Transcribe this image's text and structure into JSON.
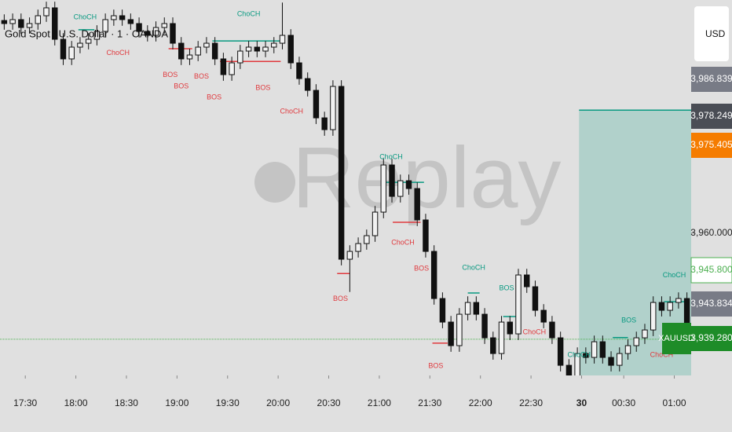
{
  "chart_data": {
    "type": "candlestick",
    "title": "Gold Spot / U.S. Dollar · 1 · OANDA",
    "currency": "USD",
    "symbol": "XAUUSD",
    "watermark": "Replay",
    "up_color": "#f2f2f2",
    "down_color": "#111111",
    "open": [
      4001.5,
      4000.9,
      4001.67,
      4000.13,
      4000.9,
      4002.43,
      4003.97,
      3997.83,
      3994.0,
      3996.3,
      3997.06,
      3997.83,
      3999.37,
      4001.67,
      4002.43,
      4001.67,
      4000.9,
      3999.37,
      3998.6,
      4000.13,
      4000.9,
      3997.06,
      3994.0,
      3994.76,
      3996.3,
      3997.06,
      3994.0,
      3990.93,
      3993.23,
      3995.53,
      3996.3,
      3995.53,
      3996.3,
      3997.06,
      3998.6,
      3993.23,
      3990.16,
      3987.86,
      3982.49,
      3980.19,
      3988.63,
      3954.89,
      3956.42,
      3957.95,
      3959.49,
      3964.09,
      3973.29,
      3967.16,
      3970.22,
      3968.69,
      3962.56,
      3956.42,
      3947.22,
      3942.62,
      3938.02,
      3944.15,
      3946.45,
      3944.15,
      3939.55,
      3936.48,
      3942.62,
      3940.32,
      3951.82,
      3949.52,
      3944.92,
      3942.62,
      3939.55,
      3934.18,
      3931.11,
      3936.48,
      3935.72,
      3938.78,
      3935.72,
      3934.18,
      3936.48,
      3938.02,
      3939.55,
      3941.08,
      3946.45,
      3944.92,
      3946.45,
      3947.22
    ],
    "high": [
      4002.7,
      4002.87,
      4002.87,
      4002.1,
      4003.63,
      4005.17,
      4005.17,
      3999.03,
      3997.5,
      3998.26,
      3999.03,
      4000.57,
      4002.87,
      4003.63,
      4003.63,
      4002.87,
      4002.1,
      4000.57,
      4001.33,
      4002.1,
      4002.1,
      3998.26,
      3995.96,
      3997.5,
      3998.26,
      3998.26,
      3995.2,
      3994.43,
      3996.73,
      3997.5,
      3997.5,
      3997.5,
      3998.26,
      4005.0,
      3999.8,
      3994.43,
      3991.36,
      3989.06,
      3983.69,
      3989.83,
      3989.83,
      3957.62,
      3959.15,
      3960.69,
      3965.29,
      3974.49,
      3974.49,
      3971.42,
      3971.42,
      3969.89,
      3963.76,
      3957.62,
      3948.42,
      3943.82,
      3945.35,
      3947.65,
      3947.65,
      3945.35,
      3940.75,
      3943.82,
      3943.82,
      3953.02,
      3953.02,
      3950.72,
      3946.12,
      3943.82,
      3940.75,
      3935.38,
      3937.68,
      3937.68,
      3939.98,
      3939.98,
      3936.92,
      3937.68,
      3939.22,
      3940.75,
      3942.28,
      3947.65,
      3947.65,
      3947.65,
      3948.42,
      3948.42
    ],
    "low": [
      3999.7,
      3999.7,
      3998.93,
      3998.93,
      3999.7,
      4001.23,
      3996.63,
      3992.8,
      3992.8,
      3995.1,
      3995.86,
      3996.63,
      3998.17,
      4000.47,
      4000.47,
      3999.7,
      3998.17,
      3997.4,
      3997.4,
      3998.93,
      3995.86,
      3992.8,
      3992.8,
      3993.56,
      3995.1,
      3992.8,
      3989.73,
      3989.73,
      3992.03,
      3994.33,
      3994.33,
      3994.33,
      3995.1,
      3995.86,
      3992.03,
      3988.96,
      3986.66,
      3981.29,
      3978.99,
      3978.99,
      3953.69,
      3948.5,
      3955.22,
      3956.75,
      3958.29,
      3962.89,
      3965.96,
      3965.96,
      3967.49,
      3961.36,
      3955.22,
      3946.02,
      3941.42,
      3936.82,
      3936.82,
      3942.95,
      3942.95,
      3938.35,
      3935.28,
      3935.28,
      3939.12,
      3939.12,
      3948.32,
      3943.72,
      3941.42,
      3938.35,
      3932.98,
      3929.91,
      3929.91,
      3934.52,
      3934.52,
      3934.52,
      3932.98,
      3932.98,
      3935.28,
      3936.82,
      3938.35,
      3939.88,
      3943.72,
      3943.72,
      3945.25,
      3938.08
    ],
    "close": [
      4000.9,
      4001.67,
      4000.13,
      4000.9,
      4002.43,
      4003.97,
      3997.83,
      3994.0,
      3996.3,
      3997.06,
      3997.83,
      3999.37,
      4001.67,
      4002.43,
      4001.67,
      4000.9,
      3999.37,
      3998.6,
      4000.13,
      4000.9,
      3997.06,
      3994.0,
      3994.76,
      3996.3,
      3997.06,
      3994.0,
      3990.93,
      3993.23,
      3995.53,
      3996.3,
      3995.53,
      3996.3,
      3997.06,
      3998.6,
      3993.23,
      3990.16,
      3987.86,
      3982.49,
      3980.19,
      3988.63,
      3954.89,
      3956.42,
      3957.95,
      3959.49,
      3964.09,
      3973.29,
      3967.16,
      3970.22,
      3968.69,
      3962.56,
      3956.42,
      3947.22,
      3942.62,
      3938.02,
      3944.15,
      3946.45,
      3944.15,
      3939.55,
      3936.48,
      3942.62,
      3940.32,
      3951.82,
      3949.52,
      3944.92,
      3942.62,
      3939.55,
      3934.18,
      3931.11,
      3936.48,
      3935.72,
      3938.78,
      3935.72,
      3934.18,
      3936.48,
      3938.02,
      3939.55,
      3941.08,
      3946.45,
      3944.92,
      3946.45,
      3947.22,
      3939.28
    ],
    "xlim": [
      -0.5,
      81.5
    ],
    "ylim": [
      3932.2,
      4005.5
    ],
    "xticks": [
      {
        "value": 2.5,
        "label": "17:30"
      },
      {
        "value": 8.5,
        "label": "18:00"
      },
      {
        "value": 14.5,
        "label": "18:30"
      },
      {
        "value": 20.5,
        "label": "19:00"
      },
      {
        "value": 26.5,
        "label": "19:30"
      },
      {
        "value": 32.5,
        "label": "20:00"
      },
      {
        "value": 38.5,
        "label": "20:30"
      },
      {
        "value": 44.5,
        "label": "21:00"
      },
      {
        "value": 50.5,
        "label": "21:30"
      },
      {
        "value": 56.5,
        "label": "22:00"
      },
      {
        "value": 62.5,
        "label": "22:30"
      },
      {
        "value": 68.5,
        "label": "30"
      },
      {
        "value": 73.5,
        "label": "00:30"
      },
      {
        "value": 79.5,
        "label": "01:00"
      }
    ],
    "yticks": [
      {
        "value": 3960,
        "label": "3,960.000"
      }
    ],
    "price_line": {
      "value": 3939.28,
      "color": "#4caf50"
    },
    "price_tags": [
      {
        "value": 3986.839,
        "label": "3,986.839",
        "bg": "#787b86",
        "fg": "#ffffff"
      },
      {
        "value": 3978.249,
        "label": "3,978.249",
        "bg": "#4a4d55",
        "fg": "#ffffff"
      },
      {
        "value": 3975.405,
        "label": "3,975.405",
        "bg": "#f57c00",
        "fg": "#ffffff"
      },
      {
        "value": 3945.8,
        "label": "3,945.800",
        "bg": "#ffffff",
        "fg": "#4caf50"
      },
      {
        "value": 3943.834,
        "label": "3,943.834",
        "bg": "#787b86",
        "fg": "#ffffff"
      },
      {
        "value": 3939.28,
        "label": "3,939.280",
        "bg": "#1e8c28",
        "fg": "#ffffff"
      }
    ],
    "position": {
      "x": [
        68.2,
        81.5
      ],
      "y": [
        3932.2,
        3984.0
      ],
      "color": "#089981"
    },
    "levels": [
      {
        "x": [
          8.8,
          10.7
        ],
        "y": 3999.7,
        "color": "#089981"
      },
      {
        "x": [
          19.5,
          22.3
        ],
        "y": 3996.0,
        "color": "#e03a3e"
      },
      {
        "x": [
          24.7,
          32.8
        ],
        "y": 3997.5,
        "color": "#089981"
      },
      {
        "x": [
          25.6,
          32.8
        ],
        "y": 3993.5,
        "color": "#e03a3e"
      },
      {
        "x": [
          39.5,
          41.0
        ],
        "y": 3952.1,
        "color": "#e03a3e"
      },
      {
        "x": [
          45.2,
          49.8
        ],
        "y": 3969.9,
        "color": "#089981"
      },
      {
        "x": [
          46.1,
          49.4
        ],
        "y": 3962.1,
        "color": "#e03a3e"
      },
      {
        "x": [
          50.8,
          52.6
        ],
        "y": 3938.5,
        "color": "#e03a3e"
      },
      {
        "x": [
          55.0,
          56.4
        ],
        "y": 3948.3,
        "color": "#089981"
      },
      {
        "x": [
          59.2,
          61.0
        ],
        "y": 3943.7,
        "color": "#089981"
      },
      {
        "x": [
          72.2,
          74.0
        ],
        "y": 3939.6,
        "color": "#089981"
      },
      {
        "x": [
          78.3,
          81.0
        ],
        "y": 3946.6,
        "color": "#089981"
      }
    ],
    "annotations": [
      {
        "text": "ChoCH",
        "x": 9.6,
        "y": 4002.1,
        "color": "#089981"
      },
      {
        "text": "ChoCH",
        "x": 13.5,
        "y": 3995.1,
        "color": "#e03a3e"
      },
      {
        "text": "BOS",
        "x": 19.7,
        "y": 3990.8,
        "color": "#e03a3e"
      },
      {
        "text": "BOS",
        "x": 21.0,
        "y": 3988.6,
        "color": "#e03a3e"
      },
      {
        "text": "BOS",
        "x": 23.4,
        "y": 3990.5,
        "color": "#e03a3e"
      },
      {
        "text": "BOS",
        "x": 24.9,
        "y": 3986.5,
        "color": "#e03a3e"
      },
      {
        "text": "ChoCH",
        "x": 29.0,
        "y": 4002.7,
        "color": "#089981"
      },
      {
        "text": "BOS",
        "x": 30.7,
        "y": 3988.3,
        "color": "#e03a3e"
      },
      {
        "text": "ChoCH",
        "x": 34.1,
        "y": 3983.7,
        "color": "#e03a3e"
      },
      {
        "text": "BOS",
        "x": 39.9,
        "y": 3947.1,
        "color": "#e03a3e"
      },
      {
        "text": "ChoCH",
        "x": 45.9,
        "y": 3974.8,
        "color": "#089981"
      },
      {
        "text": "ChoCH",
        "x": 47.3,
        "y": 3958.1,
        "color": "#e03a3e"
      },
      {
        "text": "BOS",
        "x": 49.5,
        "y": 3953.0,
        "color": "#e03a3e"
      },
      {
        "text": "BOS",
        "x": 51.2,
        "y": 3934.0,
        "color": "#e03a3e"
      },
      {
        "text": "ChoCH",
        "x": 55.7,
        "y": 3953.2,
        "color": "#089981"
      },
      {
        "text": "BOS",
        "x": 59.6,
        "y": 3949.2,
        "color": "#089981"
      },
      {
        "text": "ChoCH",
        "x": 62.9,
        "y": 3940.6,
        "color": "#e03a3e"
      },
      {
        "text": "ChoCH",
        "x": 68.2,
        "y": 3936.2,
        "color": "#089981"
      },
      {
        "text": "BOS",
        "x": 74.1,
        "y": 3942.9,
        "color": "#089981"
      },
      {
        "text": "ChoCH",
        "x": 78.0,
        "y": 3936.2,
        "color": "#e03a3e"
      },
      {
        "text": "ChoCH",
        "x": 79.5,
        "y": 3951.7,
        "color": "#089981"
      }
    ]
  }
}
